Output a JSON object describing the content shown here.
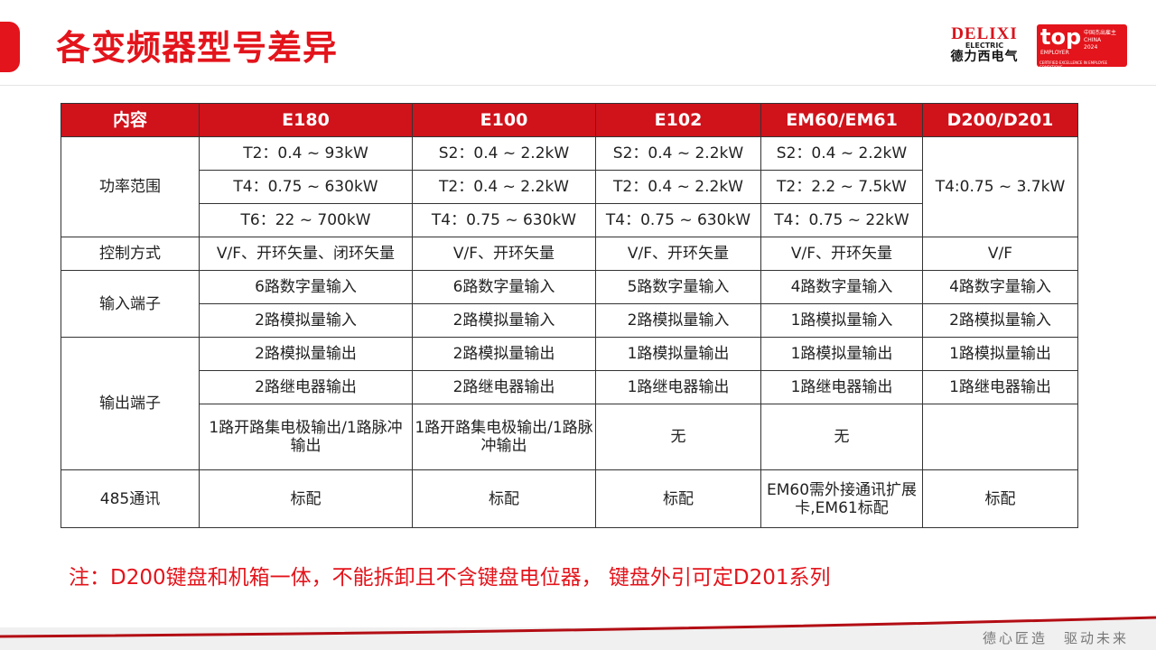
{
  "title": "各变频器型号差异",
  "logo": {
    "brand": "DELIXI",
    "sub": "ELECTRIC",
    "cn": "德力西电气"
  },
  "badge": {
    "top": "top",
    "employer": "EMPLOYER",
    "cn": "中国杰出雇主",
    "country": "CHINA",
    "year": "2024",
    "footer": "CERTIFIED EXCELLENCE IN EMPLOYEE CONDITIONS"
  },
  "colors": {
    "accent": "#e3141b",
    "header_bg": "#d0121b"
  },
  "table": {
    "headers": [
      "内容",
      "E180",
      "E100",
      "E102",
      "EM60/EM61",
      "D200/D201"
    ],
    "power": {
      "label": "功率范围",
      "e180": [
        "T2：0.4 ~ 93kW",
        "T4：0.75 ~ 630kW",
        "T6：22 ~ 700kW"
      ],
      "e100": [
        "S2：0.4 ~ 2.2kW",
        "T2：0.4 ~ 2.2kW",
        "T4：0.75 ~ 630kW"
      ],
      "e102": [
        "S2：0.4 ~ 2.2kW",
        "T2：0.4 ~ 2.2kW",
        "T4：0.75 ~ 630kW"
      ],
      "em60": [
        "S2：0.4 ~ 2.2kW",
        "T2：2.2 ~ 7.5kW",
        "T4：0.75 ~ 22kW"
      ],
      "d200": "T4:0.75 ~ 3.7kW"
    },
    "control": {
      "label": "控制方式",
      "values": [
        "V/F、开环矢量、闭环矢量",
        "V/F、开环矢量",
        "V/F、开环矢量",
        "V/F、开环矢量",
        "V/F"
      ]
    },
    "input": {
      "label": "输入端子",
      "digital": [
        "6路数字量输入",
        "6路数字量输入",
        "5路数字量输入",
        "4路数字量输入",
        "4路数字量输入"
      ],
      "analog": [
        "2路模拟量输入",
        "2路模拟量输入",
        "2路模拟量输入",
        "1路模拟量输入",
        "2路模拟量输入"
      ]
    },
    "output": {
      "label": "输出端子",
      "analog": [
        "2路模拟量输出",
        "2路模拟量输出",
        "1路模拟量输出",
        "1路模拟量输出",
        "1路模拟量输出"
      ],
      "relay": [
        "2路继电器输出",
        "2路继电器输出",
        "1路继电器输出",
        "1路继电器输出",
        "1路继电器输出"
      ],
      "oc": [
        "1路开路集电极输出/1路脉冲输出",
        "1路开路集电极输出/1路脉冲输出",
        "无",
        "无",
        ""
      ]
    },
    "comm": {
      "label": "485通讯",
      "values": [
        "标配",
        "标配",
        "标配",
        "EM60需外接通讯扩展卡,EM61标配",
        "标配"
      ]
    }
  },
  "note": "注：D200键盘和机箱一体，不能拆卸且不含键盘电位器， 键盘外引可定D201系列",
  "slogan": "德心匠造　驱动未来"
}
